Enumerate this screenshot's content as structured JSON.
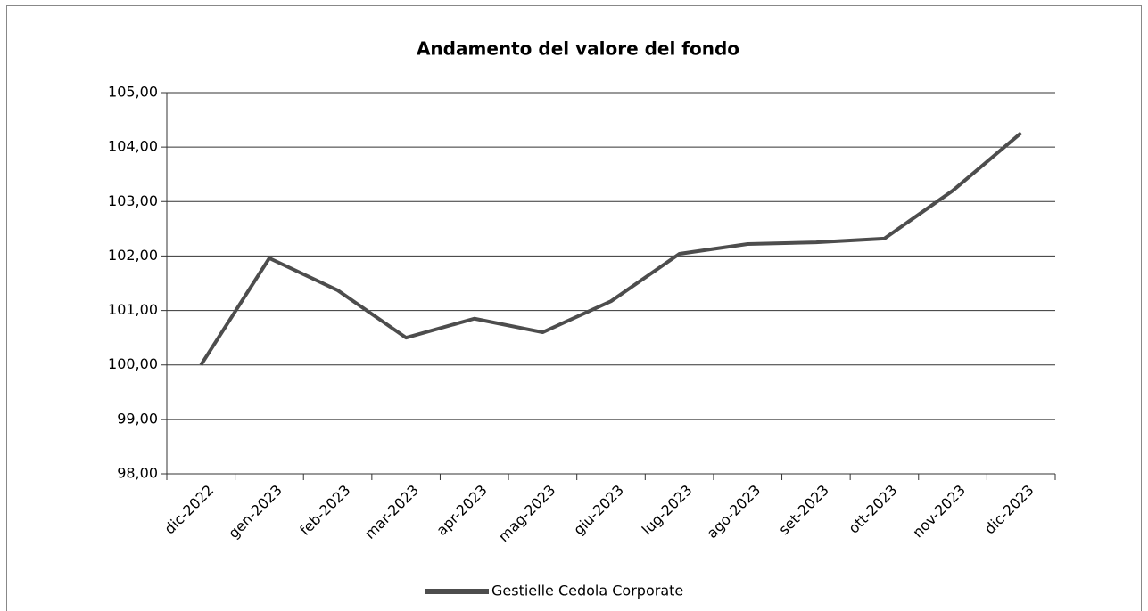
{
  "chart_data": {
    "type": "line",
    "title": "Andamento del valore del fondo",
    "categories": [
      "dic-2022",
      "gen-2023",
      "feb-2023",
      "mar-2023",
      "apr-2023",
      "mag-2023",
      "giu-2023",
      "lug-2023",
      "ago-2023",
      "set-2023",
      "ott-2023",
      "nov-2023",
      "dic-2023"
    ],
    "series": [
      {
        "name": "Gestielle Cedola Corporate",
        "color": "#4d4d4d",
        "values": [
          100.0,
          101.96,
          101.37,
          100.5,
          100.85,
          100.6,
          101.17,
          102.04,
          102.22,
          102.25,
          102.32,
          103.2,
          104.26
        ]
      }
    ],
    "ylim": [
      98,
      105
    ],
    "yticks": [
      {
        "value": 98,
        "label": "98,00"
      },
      {
        "value": 99,
        "label": "99,00"
      },
      {
        "value": 100,
        "label": "100,00"
      },
      {
        "value": 101,
        "label": "101,00"
      },
      {
        "value": 102,
        "label": "102,00"
      },
      {
        "value": 103,
        "label": "103,00"
      },
      {
        "value": 104,
        "label": "104,00"
      },
      {
        "value": 105,
        "label": "105,00"
      }
    ],
    "grid": true,
    "legend": "bottom"
  }
}
